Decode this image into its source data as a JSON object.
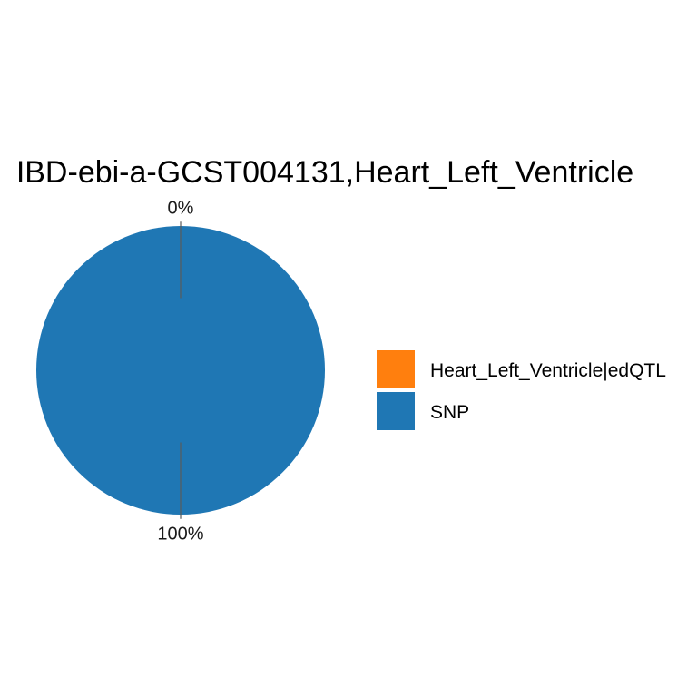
{
  "chart_data": {
    "type": "pie",
    "title": "IBD-ebi-a-GCST004131,Heart_Left_Ventricle",
    "categories": [
      "Heart_Left_Ventricle|edQTL",
      "SNP"
    ],
    "values": [
      0,
      100
    ],
    "slice_labels": [
      "0%",
      "100%"
    ],
    "colors": [
      "#ff7f0e",
      "#1f77b4"
    ],
    "legend": {
      "placement": "right",
      "entries": [
        {
          "label": "Heart_Left_Ventricle|edQTL",
          "color": "#ff7f0e"
        },
        {
          "label": "SNP",
          "color": "#1f77b4"
        }
      ]
    },
    "grid": false
  }
}
